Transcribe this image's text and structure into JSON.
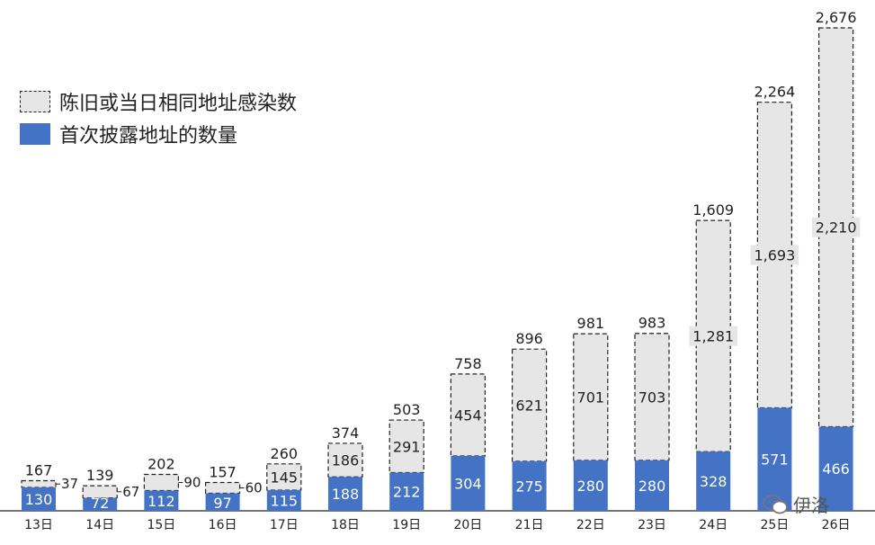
{
  "legend": {
    "old_label": "陈旧或当日相同地址感染数",
    "new_label": "首次披露地址的数量"
  },
  "watermark": {
    "text": "伊洛"
  },
  "colors": {
    "new": "#4472c4",
    "old": "#e6e6e6",
    "old_border": "#222222"
  },
  "chart_data": {
    "type": "bar",
    "stacked": true,
    "categories": [
      "13日",
      "14日",
      "15日",
      "16日",
      "17日",
      "18日",
      "19日",
      "20日",
      "21日",
      "22日",
      "23日",
      "24日",
      "25日",
      "26日"
    ],
    "series": [
      {
        "name": "首次披露地址的数量",
        "values": [
          130,
          72,
          112,
          97,
          115,
          188,
          212,
          304,
          275,
          280,
          280,
          328,
          571,
          466
        ],
        "display": [
          "130",
          "72",
          "112",
          "97",
          "115",
          "188",
          "212",
          "304",
          "275",
          "280",
          "280",
          "328",
          "571",
          "466"
        ]
      },
      {
        "name": "陈旧或当日相同地址感染数",
        "values": [
          37,
          67,
          90,
          60,
          145,
          186,
          291,
          454,
          621,
          701,
          703,
          1281,
          1693,
          2210
        ],
        "display": [
          "37",
          "67",
          "90",
          "60",
          "145",
          "186",
          "291",
          "454",
          "621",
          "701",
          "703",
          "1,281",
          "1,693",
          "2,210"
        ]
      }
    ],
    "totals": [
      167,
      139,
      202,
      157,
      260,
      374,
      503,
      758,
      896,
      981,
      983,
      1609,
      2264,
      2676
    ],
    "totals_display": [
      "167",
      "139",
      "202",
      "157",
      "260",
      "374",
      "503",
      "758",
      "896",
      "981",
      "983",
      "1,609",
      "2,264",
      "2,676"
    ],
    "ylim": [
      0,
      2676
    ],
    "grid": false,
    "legend_position": "top-left"
  }
}
